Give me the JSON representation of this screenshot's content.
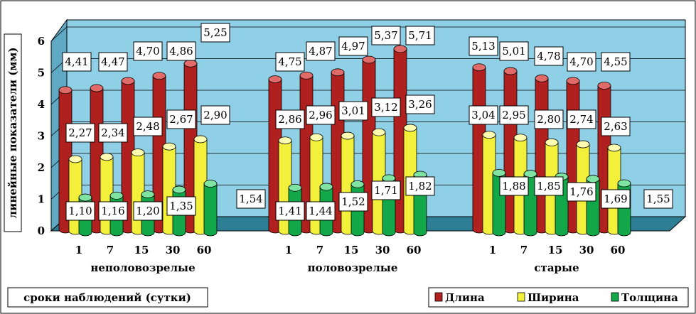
{
  "chart_data": {
    "type": "bar",
    "style": "3d-cylinder",
    "ylabel": "линейные показатели (мм)",
    "xlabel": "сроки наблюдений (сутки)",
    "ylim": [
      0,
      6
    ],
    "yticks": [
      "0",
      "1",
      "2",
      "3",
      "4",
      "5",
      "6"
    ],
    "legend_position": "bottom-right",
    "grid": true,
    "groups": [
      {
        "name": "неполовозрелые",
        "days": [
          "1",
          "7",
          "15",
          "30",
          "60"
        ],
        "values": {
          "Длина": [
            4.41,
            4.47,
            4.7,
            4.86,
            5.25
          ],
          "Ширина": [
            2.27,
            2.34,
            2.48,
            2.67,
            2.9
          ],
          "Толщина": [
            1.1,
            1.16,
            1.2,
            1.35,
            1.54
          ]
        },
        "labels": {
          "Длина": [
            "4,41",
            "4,47",
            "4,70",
            "4,86",
            "5,25"
          ],
          "Ширина": [
            "2,27",
            "2,34",
            "2,48",
            "2,67",
            "2,90"
          ],
          "Толщина": [
            "1,10",
            "1,16",
            "1,20",
            "1,35",
            "1,54"
          ]
        }
      },
      {
        "name": "половозрелые",
        "days": [
          "1",
          "7",
          "15",
          "30",
          "60"
        ],
        "values": {
          "Длина": [
            4.75,
            4.87,
            4.97,
            5.37,
            5.71
          ],
          "Ширина": [
            2.86,
            2.96,
            3.01,
            3.12,
            3.26
          ],
          "Толщина": [
            1.41,
            1.44,
            1.52,
            1.71,
            1.82
          ]
        },
        "labels": {
          "Длина": [
            "4,75",
            "4,87",
            "4,97",
            "5,37",
            "5,71"
          ],
          "Ширина": [
            "2,86",
            "2,96",
            "3,01",
            "3,12",
            "3,26"
          ],
          "Толщина": [
            "1,41",
            "1,44",
            "1,52",
            "1,71",
            "1,82"
          ]
        }
      },
      {
        "name": "старые",
        "days": [
          "1",
          "7",
          "15",
          "30",
          "60"
        ],
        "values": {
          "Длина": [
            5.13,
            5.01,
            4.78,
            4.7,
            4.55
          ],
          "Ширина": [
            3.04,
            2.95,
            2.8,
            2.74,
            2.63
          ],
          "Толщина": [
            1.88,
            1.85,
            1.76,
            1.69,
            1.55
          ]
        },
        "labels": {
          "Длина": [
            "5,13",
            "5,01",
            "4,78",
            "4,70",
            "4,55"
          ],
          "Ширина": [
            "3,04",
            "2,95",
            "2,80",
            "2,74",
            "2,63"
          ],
          "Толщина": [
            "1,88",
            "1,85",
            "1,76",
            "1,69",
            "1,55"
          ]
        }
      }
    ],
    "series": [
      {
        "name": "Длина",
        "color": "#b0201e",
        "top": "#e06b68"
      },
      {
        "name": "Ширина",
        "color": "#f2f03a",
        "top": "#fdfcb0"
      },
      {
        "name": "Толщина",
        "color": "#12a84a",
        "top": "#7fe3a2"
      }
    ],
    "colors": {
      "wall": "#8fd0e6",
      "floor": "#2e7e96",
      "side": "#5fa9c4"
    }
  }
}
